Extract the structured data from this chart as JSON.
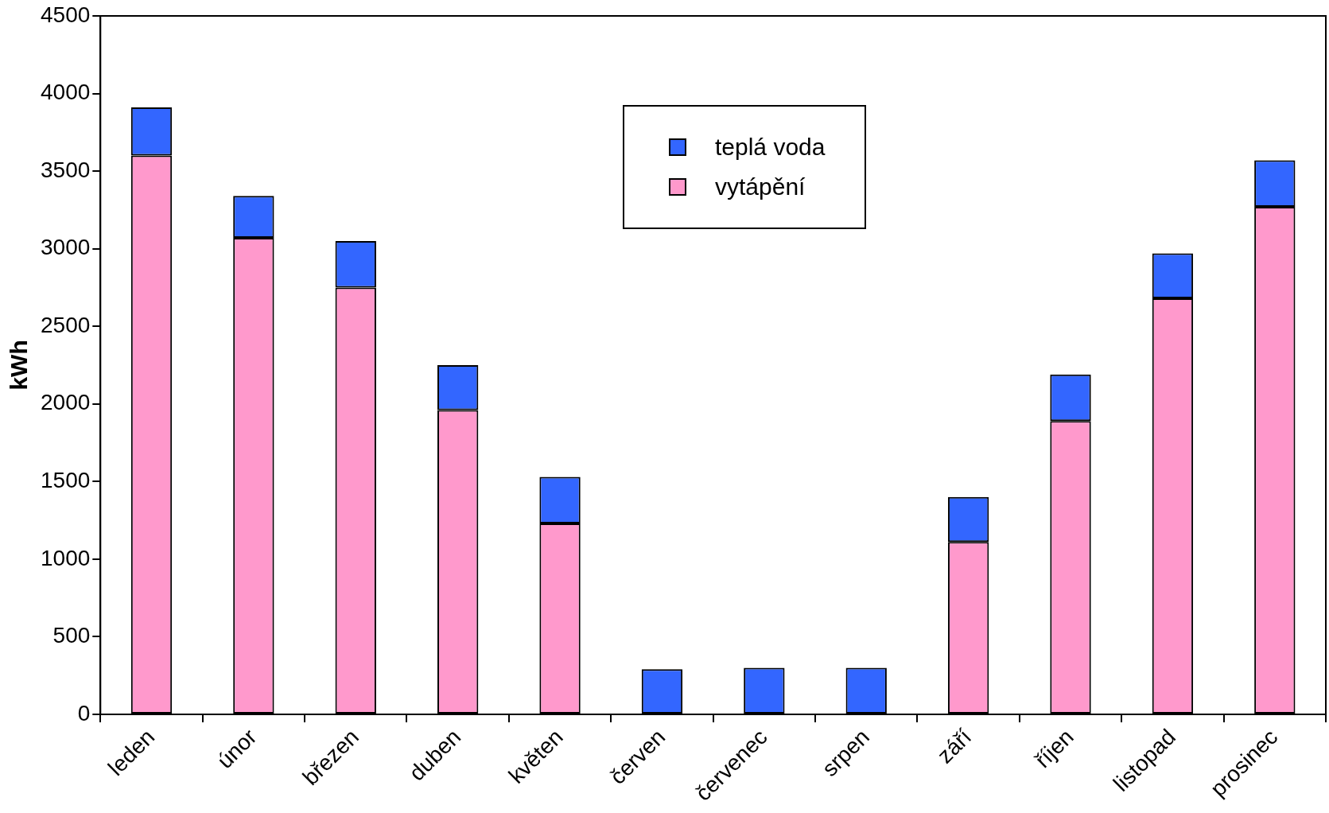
{
  "chart_data": {
    "type": "bar",
    "ylabel": "kWh",
    "stacked": true,
    "categories": [
      "leden",
      "únor",
      "březen",
      "duben",
      "květen",
      "červen",
      "červenec",
      "srpen",
      "září",
      "říjen",
      "listopad",
      "prosinec"
    ],
    "series": [
      {
        "name": "vytápění",
        "color": "#ff99cc",
        "values": [
          3600,
          3070,
          2750,
          1960,
          1230,
          0,
          0,
          0,
          1110,
          1890,
          2680,
          3270
        ]
      },
      {
        "name": "teplá voda",
        "color": "#3366ff",
        "values": [
          310,
          270,
          300,
          290,
          300,
          290,
          300,
          300,
          290,
          300,
          290,
          300
        ]
      }
    ],
    "ylim": [
      0,
      4500
    ],
    "yticks": [
      0,
      500,
      1000,
      1500,
      2000,
      2500,
      3000,
      3500,
      4000,
      4500
    ],
    "grid": false,
    "legend": "top right"
  }
}
